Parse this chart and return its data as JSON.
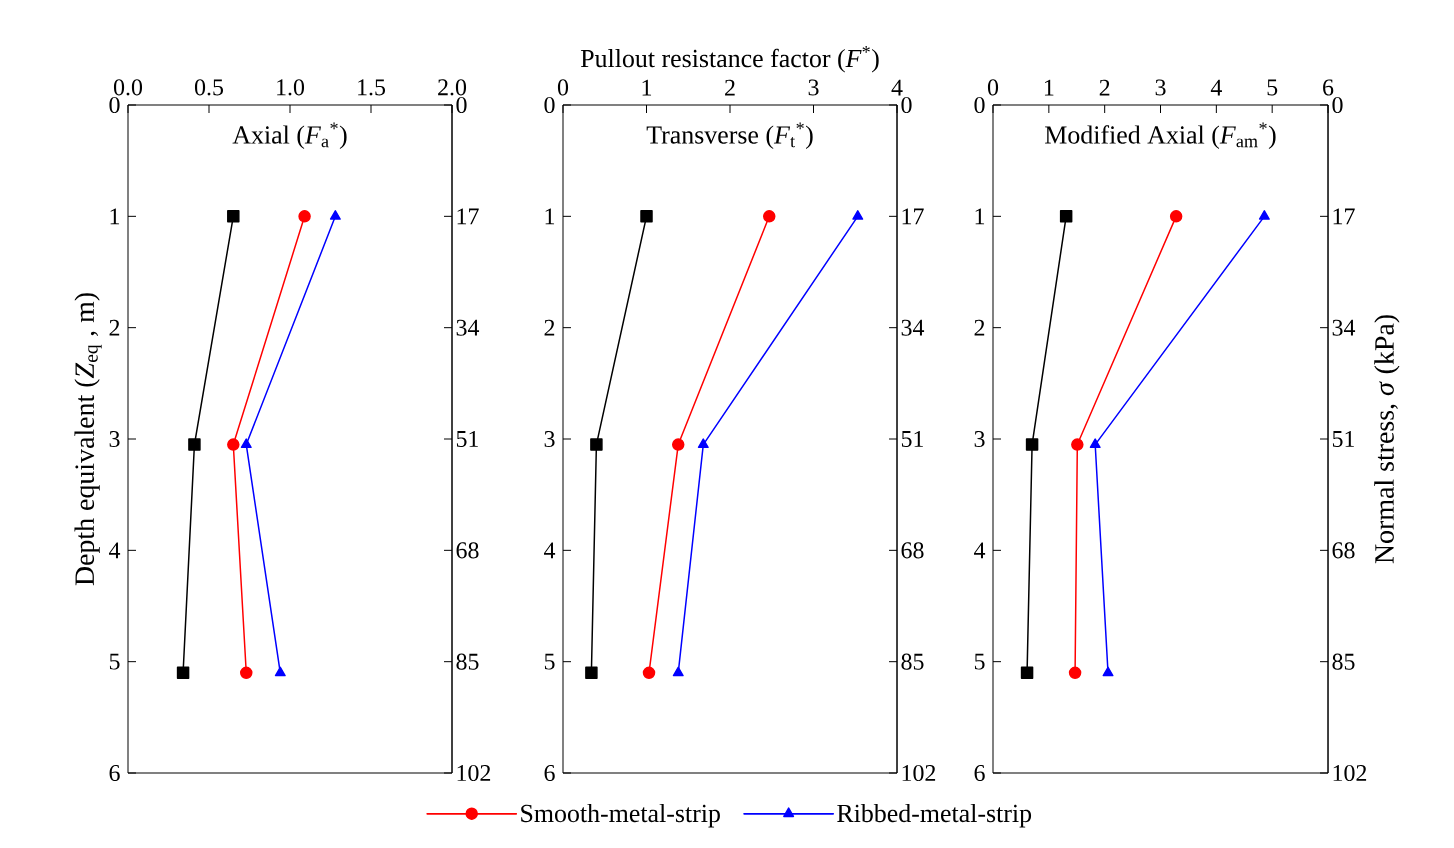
{
  "chart_data": [
    {
      "type": "line",
      "title": "Axial (*F*$_{a}$$^{*}$)",
      "ylabel": "Depth equivalent (*Z*$_{eq}$ , m)",
      "xlim": [
        0,
        2
      ],
      "xticks": [
        {
          "value": 0,
          "label": "0.0"
        },
        0.5,
        {
          "value": 1,
          "label": "1.0"
        },
        1.5,
        {
          "value": 2,
          "label": "2.0"
        }
      ],
      "ylim": [
        6,
        0
      ],
      "yticks": [
        0,
        1,
        2,
        3,
        4,
        5,
        6
      ],
      "y2lim": [
        102,
        0
      ],
      "y2ticks": [
        0,
        17,
        34,
        51,
        68,
        85,
        102
      ],
      "line_style": "solid",
      "series": [
        {
          "color": "#000000",
          "marker": "square",
          "x": [
            0.65,
            0.41,
            0.34
          ],
          "values": [
            1.0,
            3.05,
            5.1
          ]
        },
        {
          "color": "#ff0000",
          "marker": "circle",
          "x": [
            1.09,
            0.65,
            0.73
          ],
          "values": [
            1.0,
            3.05,
            5.1
          ]
        },
        {
          "color": "#0000ff",
          "marker": "triangle",
          "x": [
            1.28,
            0.73,
            0.94
          ],
          "values": [
            1.0,
            3.05,
            5.1
          ]
        }
      ]
    },
    {
      "type": "line",
      "title": "Transverse (*F*$_{t}$$^{*}$)",
      "xlabel": "Pullout resistance factor (*F*$^{*}$)",
      "xlim": [
        0,
        4
      ],
      "xticks": [
        0,
        1,
        2,
        3,
        4
      ],
      "ylim": [
        6,
        0
      ],
      "yticks": [
        0,
        1,
        2,
        3,
        4,
        5,
        6
      ],
      "y2lim": [
        102,
        0
      ],
      "y2ticks": [
        0,
        17,
        34,
        51,
        68,
        85,
        102
      ],
      "line_style": "solid",
      "legend": "bottom",
      "series": [
        {
          "color": "#000000",
          "marker": "square",
          "x": [
            1.0,
            0.4,
            0.34
          ],
          "values": [
            1.0,
            3.05,
            5.1
          ]
        },
        {
          "name": "Smooth-metal-strip",
          "color": "#ff0000",
          "marker": "circle",
          "x": [
            2.47,
            1.38,
            1.03
          ],
          "values": [
            1.0,
            3.05,
            5.1
          ]
        },
        {
          "name": "Ribbed-metal-strip",
          "color": "#0000ff",
          "marker": "triangle",
          "x": [
            3.53,
            1.68,
            1.38
          ],
          "values": [
            1.0,
            3.05,
            5.1
          ]
        }
      ]
    },
    {
      "type": "line",
      "title": "Modified Axial (*F*$_{am}$$^{*}$)",
      "y2label": "Normal stress, *σ* (kPa)",
      "xlim": [
        0,
        6
      ],
      "xticks": [
        0,
        1,
        2,
        3,
        4,
        5,
        6
      ],
      "ylim": [
        6,
        0
      ],
      "yticks": [
        0,
        1,
        2,
        3,
        4,
        5,
        6
      ],
      "y2lim": [
        102,
        0
      ],
      "y2ticks": [
        0,
        17,
        34,
        51,
        68,
        85,
        102
      ],
      "line_style": "solid",
      "series": [
        {
          "color": "#000000",
          "marker": "square",
          "x": [
            1.31,
            0.7,
            0.61
          ],
          "values": [
            1.0,
            3.05,
            5.1
          ]
        },
        {
          "color": "#ff0000",
          "marker": "circle",
          "x": [
            3.28,
            1.51,
            1.47
          ],
          "values": [
            1.0,
            3.05,
            5.1
          ]
        },
        {
          "color": "#0000ff",
          "marker": "triangle",
          "x": [
            4.86,
            1.83,
            2.06
          ],
          "values": [
            1.0,
            3.05,
            5.1
          ]
        }
      ]
    }
  ]
}
